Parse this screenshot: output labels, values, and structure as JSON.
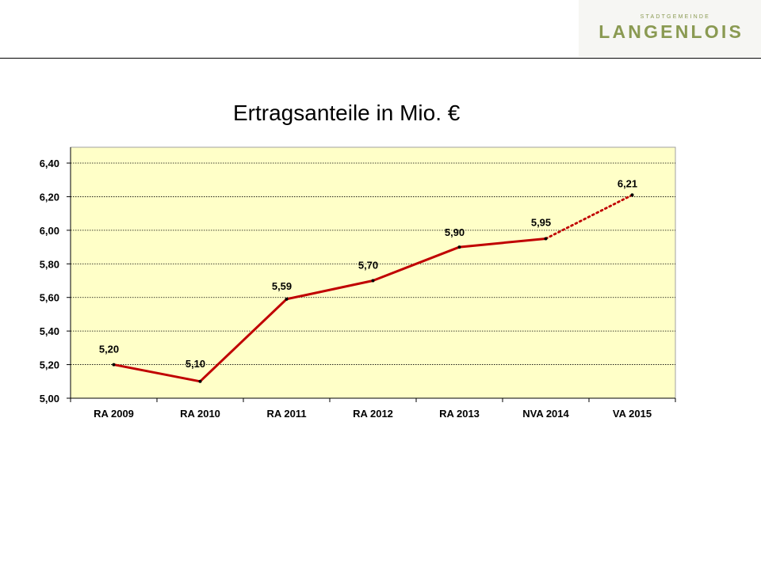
{
  "logo": {
    "small": "STADTGEMEINDE",
    "main": "LANGENLOIS"
  },
  "colors": {
    "plot_bg": "#FFFFC8",
    "line": "#C00000",
    "brand": "#8A9A52"
  },
  "chart_data": {
    "type": "line",
    "title": "Ertragsanteile in Mio. €",
    "categories": [
      "RA 2009",
      "RA 2010",
      "RA 2011",
      "RA 2012",
      "RA 2013",
      "NVA 2014",
      "VA 2015"
    ],
    "values": [
      5.2,
      5.1,
      5.59,
      5.7,
      5.9,
      5.95,
      6.21
    ],
    "data_labels": [
      "5,20",
      "5,10",
      "5,59",
      "5,70",
      "5,90",
      "5,95",
      "6,21"
    ],
    "line_style": [
      "solid",
      "solid",
      "solid",
      "solid",
      "solid",
      "solid",
      "dotted"
    ],
    "ylim": [
      5.0,
      6.5
    ],
    "yticks": [
      "5,00",
      "5,20",
      "5,40",
      "5,60",
      "5,80",
      "6,00",
      "6,20",
      "6,40"
    ],
    "ytick_values": [
      5.0,
      5.2,
      5.4,
      5.6,
      5.8,
      6.0,
      6.2,
      6.4
    ],
    "xlabel": "",
    "ylabel": "",
    "grid": true,
    "legend": "none"
  }
}
